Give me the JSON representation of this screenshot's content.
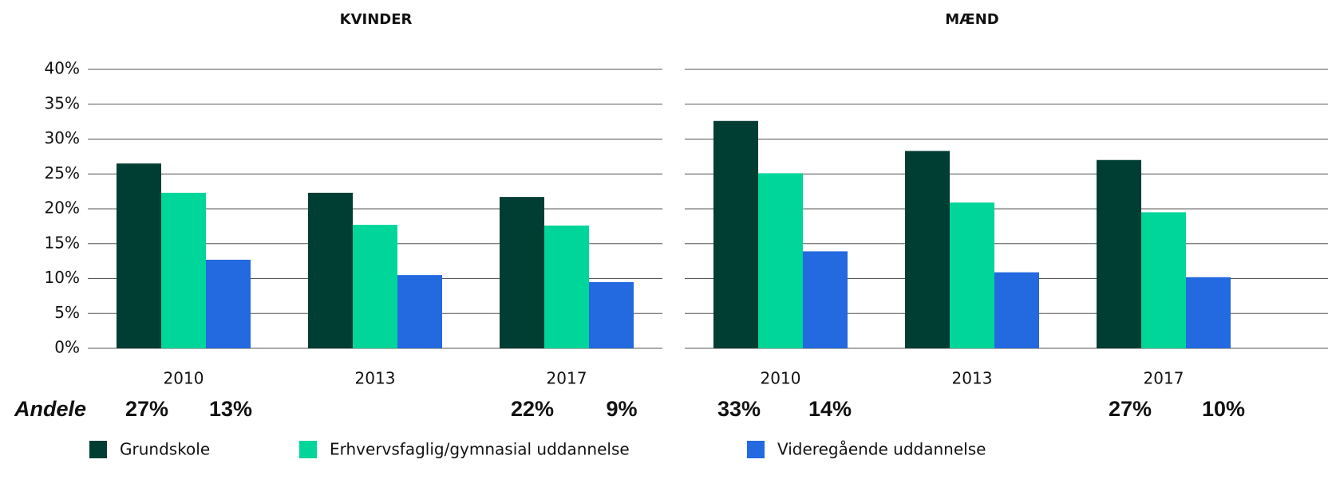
{
  "chart_data": [
    {
      "type": "bar",
      "title": "KVINDER",
      "categories": [
        "2010",
        "2013",
        "2017"
      ],
      "series": [
        {
          "name": "Grundskole",
          "color": "#003d33",
          "values": [
            26.5,
            22.3,
            21.7
          ]
        },
        {
          "name": "Erhvervsfaglig/gymnasial uddannelse",
          "color": "#00d59a",
          "values": [
            22.3,
            17.7,
            17.6
          ]
        },
        {
          "name": "Videregående uddannelse",
          "color": "#2369e0",
          "values": [
            12.7,
            10.5,
            9.5
          ]
        }
      ],
      "ylim": [
        0,
        40
      ],
      "yticks": [
        {
          "value": 0,
          "label": "0%"
        },
        {
          "value": 5,
          "label": "5%"
        },
        {
          "value": 10,
          "label": "10%"
        },
        {
          "value": 15,
          "label": "15%"
        },
        {
          "value": 20,
          "label": "20%"
        },
        {
          "value": 25,
          "label": "25%"
        },
        {
          "value": 30,
          "label": "30%"
        },
        {
          "value": 35,
          "label": "35%"
        },
        {
          "value": 40,
          "label": "40%"
        }
      ],
      "grid": true
    },
    {
      "type": "bar",
      "title": "MÆND",
      "categories": [
        "2010",
        "2013",
        "2017"
      ],
      "series": [
        {
          "name": "Grundskole",
          "color": "#003d33",
          "values": [
            32.6,
            28.3,
            27.0
          ]
        },
        {
          "name": "Erhvervsfaglig/gymnasial uddannelse",
          "color": "#00d59a",
          "values": [
            25.1,
            20.9,
            19.5
          ]
        },
        {
          "name": "Videregående uddannelse",
          "color": "#2369e0",
          "values": [
            13.9,
            10.9,
            10.2
          ]
        }
      ],
      "ylim": [
        0,
        40
      ],
      "grid": true
    }
  ],
  "annotations": {
    "label": "Andele",
    "values": [
      "27%",
      "13%",
      "22%",
      "9%",
      "33%",
      "14%",
      "27%",
      "10%"
    ]
  }
}
